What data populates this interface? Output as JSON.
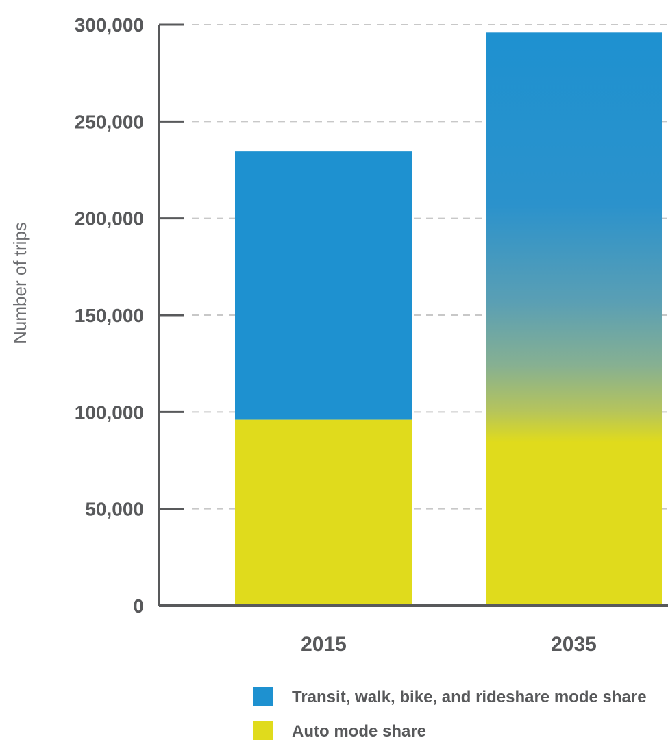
{
  "chart_data": {
    "type": "bar",
    "stacked": true,
    "title": "",
    "xlabel": "",
    "ylabel": "Number of trips",
    "ylim": [
      0,
      300000
    ],
    "yticks": [
      0,
      50000,
      100000,
      150000,
      200000,
      250000,
      300000
    ],
    "ytick_labels": [
      "0",
      "50,000",
      "100,000",
      "150,000",
      "200,000",
      "250,000",
      "300,000"
    ],
    "grid": "dashed horizontal",
    "legend_position": "bottom",
    "categories": [
      "2015",
      "2035"
    ],
    "series": [
      {
        "name": "Auto mode share",
        "color": "#e0db1c",
        "values": [
          96000,
          85000
        ]
      },
      {
        "name": "Transit, walk, bike, and rideshare mode share",
        "color": "#1e91d0",
        "values": [
          138500,
          211000
        ]
      }
    ],
    "totals": [
      234500,
      296000
    ],
    "note_2035": "2035 bar rendered with a gradient transition from auto to transit colors"
  }
}
